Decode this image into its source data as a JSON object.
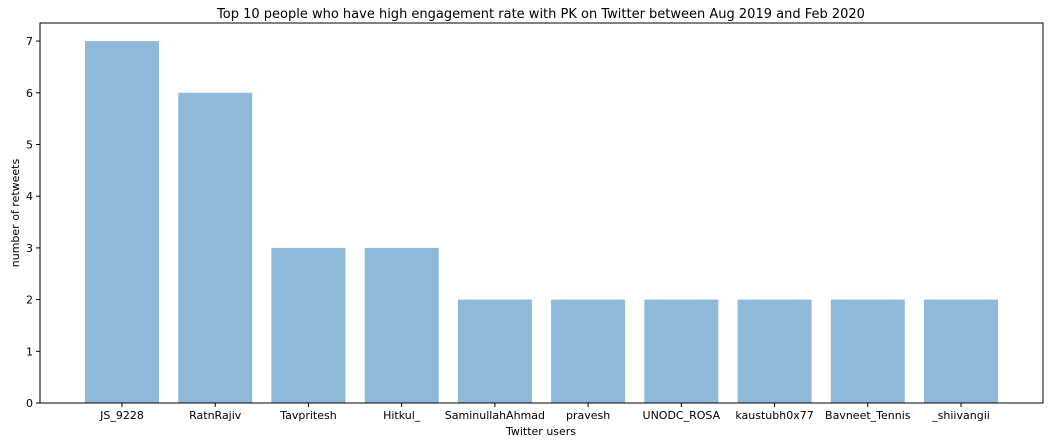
{
  "chart_data": {
    "type": "bar",
    "title": "Top 10 people who have high engagement rate with PK on Twitter between Aug 2019 and Feb 2020",
    "xlabel": "Twitter users",
    "ylabel": "number of retweets",
    "categories": [
      "JS_9228",
      "RatnRajiv",
      "Tavpritesh",
      "Hitkul_",
      "SaminullahAhmad",
      "pravesh",
      "UNODC_ROSA",
      "kaustubh0x77",
      "Bavneet_Tennis",
      "_shiivangii"
    ],
    "values": [
      7,
      6,
      3,
      3,
      2,
      2,
      2,
      2,
      2,
      2
    ],
    "yticks": [
      "0",
      "1",
      "2",
      "3",
      "4",
      "5",
      "6",
      "7"
    ],
    "ylim": [
      0,
      7.35
    ],
    "grid": false,
    "legend": "none",
    "bar_color": "#8fb9d9",
    "bar_opacity": 1
  }
}
